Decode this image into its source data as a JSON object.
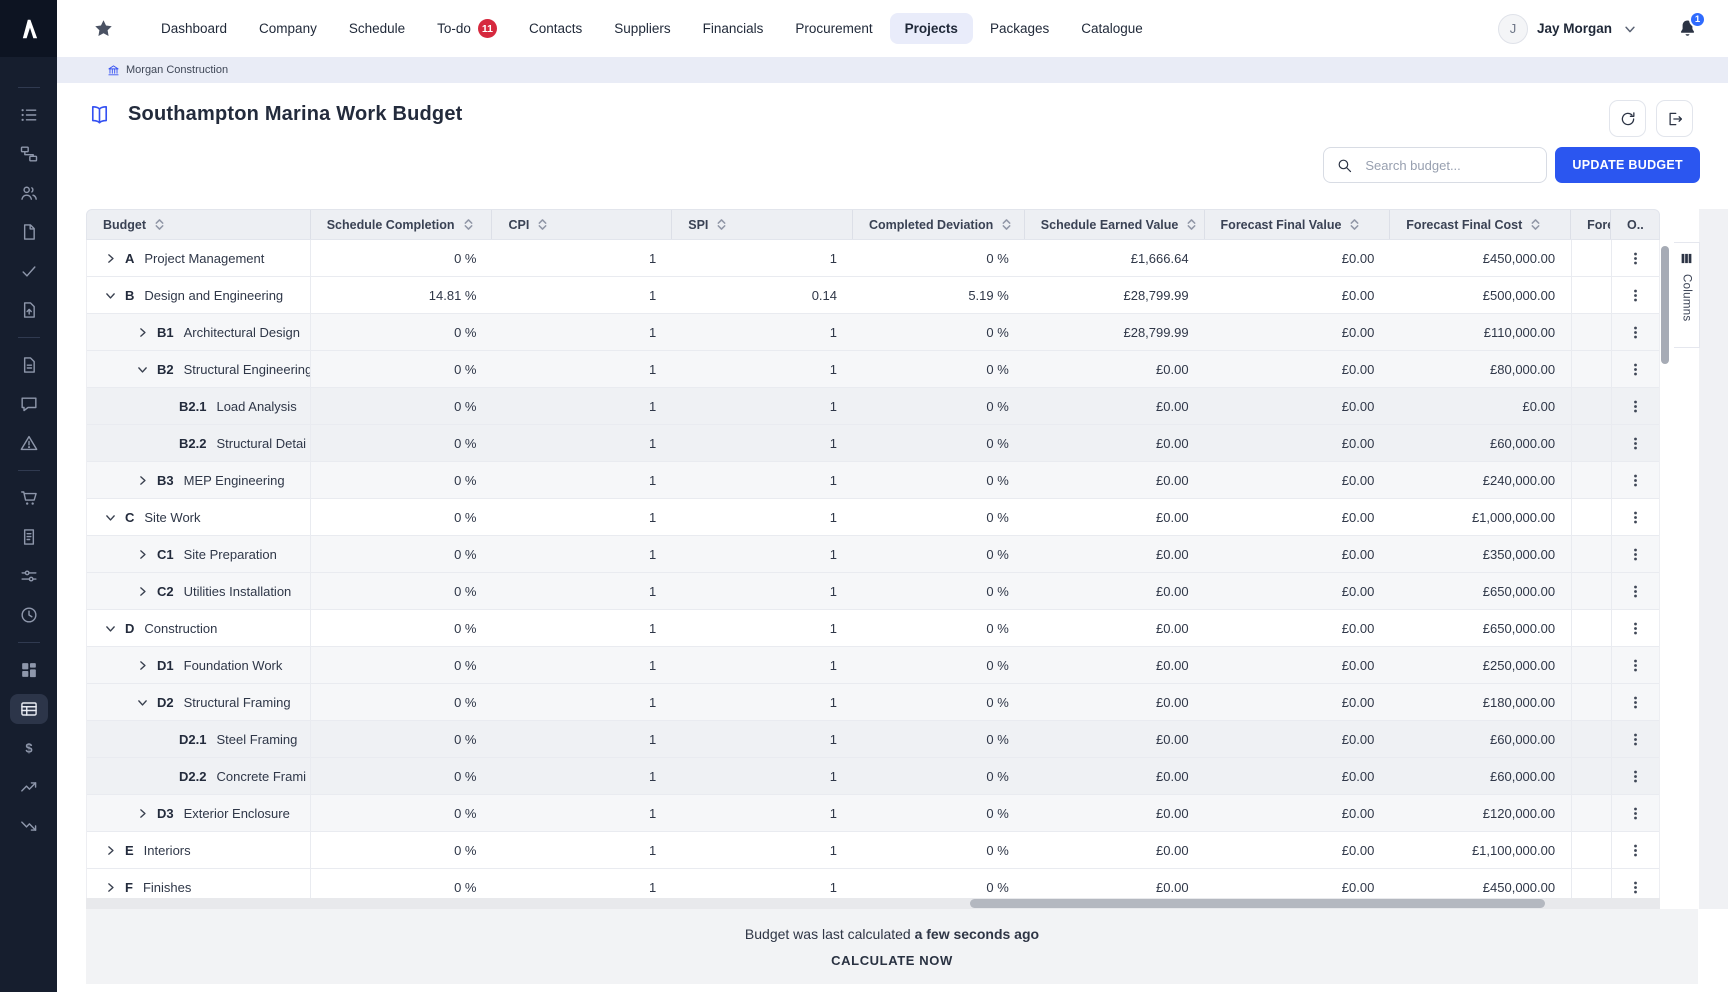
{
  "app": {
    "logo_icon": "archdesk-a-logo"
  },
  "navbar": {
    "items": [
      "Dashboard",
      "Company",
      "Schedule",
      "To-do",
      "Contacts",
      "Suppliers",
      "Financials",
      "Procurement",
      "Projects",
      "Packages",
      "Catalogue"
    ],
    "active_item": "Projects",
    "todo_badge": "11",
    "user": {
      "initial": "J",
      "name": "Jay Morgan"
    },
    "notification_badge": "1"
  },
  "breadcrumb": {
    "company": "Morgan Construction"
  },
  "page": {
    "title": "Southampton Marina Work Budget",
    "search": {
      "placeholder": "Search budget..."
    },
    "update_button_label": "UPDATE BUDGET"
  },
  "sidebar": {
    "groups": [
      [
        "list-icon",
        "org-chart-icon",
        "users-icon",
        "document-icon",
        "check-icon",
        "file-upload-icon"
      ],
      [
        "notes-icon",
        "chat-icon",
        "warning-icon"
      ],
      [
        "cart-icon",
        "invoice-icon",
        "adjustments-icon",
        "clock-icon"
      ],
      [
        "dashboard-icon",
        "budget-table-icon",
        "finance-icon",
        "trend-up-icon",
        "trend-down-icon"
      ]
    ],
    "active": "budget-table-icon"
  },
  "table": {
    "columns": [
      "Budget",
      "Schedule Completion",
      "CPI",
      "SPI",
      "Completed Deviation",
      "Schedule Earned Value",
      "Forecast Final Value",
      "Forecast Final Cost",
      "Fore",
      "O.."
    ],
    "rows": [
      {
        "code": "A",
        "name": "Project Management",
        "level": 0,
        "expand": "collapsed",
        "schedule_completion": "0 %",
        "cpi": "1",
        "spi": "1",
        "completed_deviation": "0 %",
        "schedule_earned_value": "£1,666.64",
        "forecast_final_value": "£0.00",
        "forecast_final_cost": "£450,000.00"
      },
      {
        "code": "B",
        "name": "Design and Engineering",
        "level": 0,
        "expand": "expanded",
        "schedule_completion": "14.81 %",
        "cpi": "1",
        "spi": "0.14",
        "completed_deviation": "5.19 %",
        "schedule_earned_value": "£28,799.99",
        "forecast_final_value": "£0.00",
        "forecast_final_cost": "£500,000.00"
      },
      {
        "code": "B1",
        "name": "Architectural Design",
        "level": 1,
        "expand": "collapsed",
        "schedule_completion": "0 %",
        "cpi": "1",
        "spi": "1",
        "completed_deviation": "0 %",
        "schedule_earned_value": "£28,799.99",
        "forecast_final_value": "£0.00",
        "forecast_final_cost": "£110,000.00"
      },
      {
        "code": "B2",
        "name": "Structural Engineering",
        "level": 1,
        "expand": "expanded",
        "schedule_completion": "0 %",
        "cpi": "1",
        "spi": "1",
        "completed_deviation": "0 %",
        "schedule_earned_value": "£0.00",
        "forecast_final_value": "£0.00",
        "forecast_final_cost": "£80,000.00"
      },
      {
        "code": "B2.1",
        "name": "Load Analysis",
        "level": 2,
        "expand": "none",
        "schedule_completion": "0 %",
        "cpi": "1",
        "spi": "1",
        "completed_deviation": "0 %",
        "schedule_earned_value": "£0.00",
        "forecast_final_value": "£0.00",
        "forecast_final_cost": "£0.00"
      },
      {
        "code": "B2.2",
        "name": "Structural Detai",
        "level": 2,
        "expand": "none",
        "schedule_completion": "0 %",
        "cpi": "1",
        "spi": "1",
        "completed_deviation": "0 %",
        "schedule_earned_value": "£0.00",
        "forecast_final_value": "£0.00",
        "forecast_final_cost": "£60,000.00"
      },
      {
        "code": "B3",
        "name": "MEP Engineering",
        "level": 1,
        "expand": "collapsed",
        "schedule_completion": "0 %",
        "cpi": "1",
        "spi": "1",
        "completed_deviation": "0 %",
        "schedule_earned_value": "£0.00",
        "forecast_final_value": "£0.00",
        "forecast_final_cost": "£240,000.00"
      },
      {
        "code": "C",
        "name": "Site Work",
        "level": 0,
        "expand": "expanded",
        "schedule_completion": "0 %",
        "cpi": "1",
        "spi": "1",
        "completed_deviation": "0 %",
        "schedule_earned_value": "£0.00",
        "forecast_final_value": "£0.00",
        "forecast_final_cost": "£1,000,000.00"
      },
      {
        "code": "C1",
        "name": "Site Preparation",
        "level": 1,
        "expand": "collapsed",
        "schedule_completion": "0 %",
        "cpi": "1",
        "spi": "1",
        "completed_deviation": "0 %",
        "schedule_earned_value": "£0.00",
        "forecast_final_value": "£0.00",
        "forecast_final_cost": "£350,000.00"
      },
      {
        "code": "C2",
        "name": "Utilities Installation",
        "level": 1,
        "expand": "collapsed",
        "schedule_completion": "0 %",
        "cpi": "1",
        "spi": "1",
        "completed_deviation": "0 %",
        "schedule_earned_value": "£0.00",
        "forecast_final_value": "£0.00",
        "forecast_final_cost": "£650,000.00"
      },
      {
        "code": "D",
        "name": "Construction",
        "level": 0,
        "expand": "expanded",
        "schedule_completion": "0 %",
        "cpi": "1",
        "spi": "1",
        "completed_deviation": "0 %",
        "schedule_earned_value": "£0.00",
        "forecast_final_value": "£0.00",
        "forecast_final_cost": "£650,000.00"
      },
      {
        "code": "D1",
        "name": "Foundation Work",
        "level": 1,
        "expand": "collapsed",
        "schedule_completion": "0 %",
        "cpi": "1",
        "spi": "1",
        "completed_deviation": "0 %",
        "schedule_earned_value": "£0.00",
        "forecast_final_value": "£0.00",
        "forecast_final_cost": "£250,000.00"
      },
      {
        "code": "D2",
        "name": "Structural Framing",
        "level": 1,
        "expand": "expanded",
        "schedule_completion": "0 %",
        "cpi": "1",
        "spi": "1",
        "completed_deviation": "0 %",
        "schedule_earned_value": "£0.00",
        "forecast_final_value": "£0.00",
        "forecast_final_cost": "£180,000.00"
      },
      {
        "code": "D2.1",
        "name": "Steel Framing",
        "level": 2,
        "expand": "none",
        "schedule_completion": "0 %",
        "cpi": "1",
        "spi": "1",
        "completed_deviation": "0 %",
        "schedule_earned_value": "£0.00",
        "forecast_final_value": "£0.00",
        "forecast_final_cost": "£60,000.00"
      },
      {
        "code": "D2.2",
        "name": "Concrete Frami",
        "level": 2,
        "expand": "none",
        "schedule_completion": "0 %",
        "cpi": "1",
        "spi": "1",
        "completed_deviation": "0 %",
        "schedule_earned_value": "£0.00",
        "forecast_final_value": "£0.00",
        "forecast_final_cost": "£60,000.00"
      },
      {
        "code": "D3",
        "name": "Exterior Enclosure",
        "level": 1,
        "expand": "collapsed",
        "schedule_completion": "0 %",
        "cpi": "1",
        "spi": "1",
        "completed_deviation": "0 %",
        "schedule_earned_value": "£0.00",
        "forecast_final_value": "£0.00",
        "forecast_final_cost": "£120,000.00"
      },
      {
        "code": "E",
        "name": "Interiors",
        "level": 0,
        "expand": "collapsed",
        "schedule_completion": "0 %",
        "cpi": "1",
        "spi": "1",
        "completed_deviation": "0 %",
        "schedule_earned_value": "£0.00",
        "forecast_final_value": "£0.00",
        "forecast_final_cost": "£1,100,000.00"
      },
      {
        "code": "F",
        "name": "Finishes",
        "level": 0,
        "expand": "collapsed",
        "schedule_completion": "0 %",
        "cpi": "1",
        "spi": "1",
        "completed_deviation": "0 %",
        "schedule_earned_value": "£0.00",
        "forecast_final_value": "£0.00",
        "forecast_final_cost": "£450,000.00"
      }
    ]
  },
  "columns_panel": {
    "label": "Columns"
  },
  "footer": {
    "text": "Budget was last calculated",
    "highlight": "a few seconds ago",
    "action_label": "CALCULATE NOW"
  },
  "colors": {
    "accent_blue": "#2b56f0",
    "badge_red": "#d6293e",
    "badge_blue": "#2f6bfe",
    "icon_blue": "#3350f2",
    "sidebar_bg": "#161e2e"
  }
}
